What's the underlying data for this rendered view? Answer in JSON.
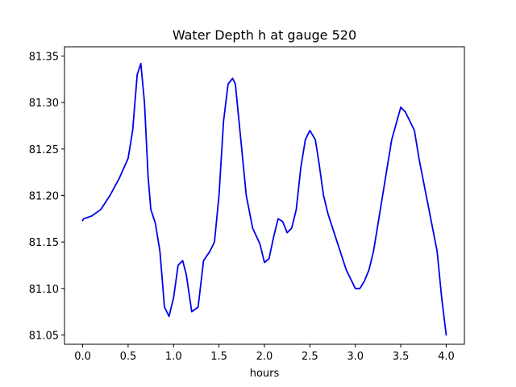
{
  "chart_data": {
    "type": "line",
    "title": "Water Depth h at gauge 520",
    "xlabel": "hours",
    "ylabel": "",
    "xlim": [
      -0.2,
      4.2
    ],
    "ylim": [
      81.04,
      81.36
    ],
    "x_ticks": [
      "0.0",
      "0.5",
      "1.0",
      "1.5",
      "2.0",
      "2.5",
      "3.0",
      "3.5",
      "4.0"
    ],
    "y_ticks": [
      "81.05",
      "81.10",
      "81.15",
      "81.20",
      "81.25",
      "81.30",
      "81.35"
    ],
    "grid": false,
    "series": [
      {
        "color": "#0000ee",
        "x": [
          0.0,
          0.01,
          0.1,
          0.2,
          0.3,
          0.4,
          0.5,
          0.55,
          0.6,
          0.64,
          0.68,
          0.72,
          0.75,
          0.8,
          0.85,
          0.9,
          0.95,
          1.0,
          1.05,
          1.1,
          1.14,
          1.2,
          1.27,
          1.33,
          1.4,
          1.45,
          1.5,
          1.55,
          1.6,
          1.65,
          1.68,
          1.72,
          1.8,
          1.87,
          1.95,
          2.0,
          2.05,
          2.1,
          2.15,
          2.2,
          2.25,
          2.3,
          2.35,
          2.4,
          2.45,
          2.5,
          2.56,
          2.6,
          2.65,
          2.7,
          2.8,
          2.9,
          3.0,
          3.05,
          3.1,
          3.15,
          3.2,
          3.3,
          3.4,
          3.5,
          3.55,
          3.6,
          3.65,
          3.7,
          3.8,
          3.9,
          3.95,
          4.0
        ],
        "y": [
          81.173,
          81.175,
          81.178,
          81.185,
          81.2,
          81.218,
          81.24,
          81.27,
          81.33,
          81.342,
          81.3,
          81.22,
          81.185,
          81.17,
          81.14,
          81.08,
          81.07,
          81.09,
          81.125,
          81.13,
          81.115,
          81.075,
          81.08,
          81.13,
          81.14,
          81.15,
          81.2,
          81.28,
          81.32,
          81.326,
          81.32,
          81.28,
          81.2,
          81.165,
          81.148,
          81.128,
          81.132,
          81.155,
          81.175,
          81.172,
          81.16,
          81.165,
          81.185,
          81.23,
          81.26,
          81.27,
          81.26,
          81.235,
          81.2,
          81.18,
          81.15,
          81.12,
          81.1,
          81.1,
          81.108,
          81.12,
          81.14,
          81.2,
          81.26,
          81.295,
          81.29,
          81.28,
          81.27,
          81.24,
          81.19,
          81.14,
          81.09,
          81.05
        ]
      }
    ]
  }
}
